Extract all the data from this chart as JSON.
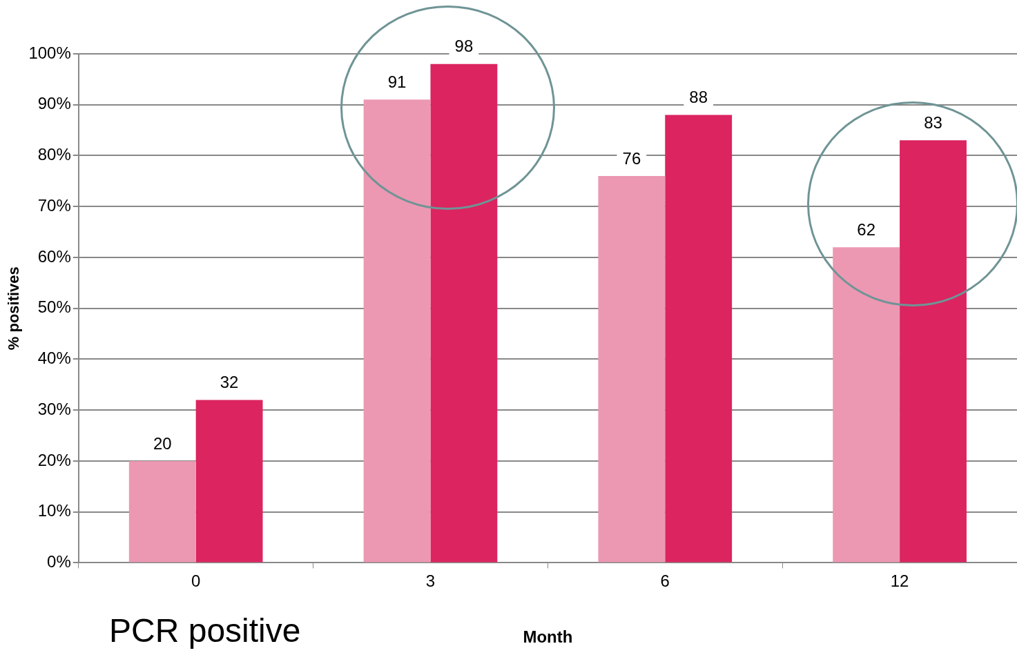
{
  "chart_data": {
    "type": "bar",
    "ylabel": "% positives",
    "xlabel": "Month",
    "categories": [
      "0",
      "3",
      "6",
      "12"
    ],
    "series": [
      {
        "color": "#ec98b2",
        "values": [
          20,
          91,
          76,
          62
        ]
      },
      {
        "color": "#db2460",
        "values": [
          32,
          98,
          88,
          83
        ]
      }
    ],
    "ylim": [
      0,
      100
    ],
    "yticks": [
      {
        "value": 0,
        "label": "0%"
      },
      {
        "value": 10,
        "label": "10%"
      },
      {
        "value": 20,
        "label": "20%"
      },
      {
        "value": 30,
        "label": "30%"
      },
      {
        "value": 40,
        "label": "40%"
      },
      {
        "value": 50,
        "label": "50%"
      },
      {
        "value": 60,
        "label": "60%"
      },
      {
        "value": 70,
        "label": "70%"
      },
      {
        "value": 80,
        "label": "80%"
      },
      {
        "value": 90,
        "label": "90%"
      },
      {
        "value": 100,
        "label": "100%"
      }
    ],
    "grid": "y",
    "data_labels": true,
    "annotations": [
      "PCR positive"
    ]
  }
}
